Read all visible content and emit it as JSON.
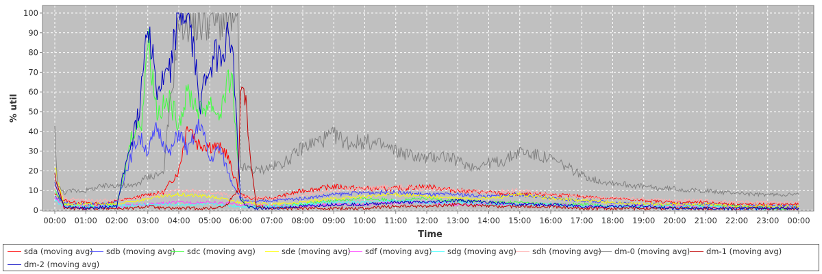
{
  "chart_data": {
    "type": "line",
    "title": "",
    "xlabel": "Time",
    "ylabel": "% util",
    "xlim": [
      "00:00",
      "24:00"
    ],
    "ylim": [
      0,
      100
    ],
    "x_ticks": [
      "00:00",
      "01:00",
      "02:00",
      "03:00",
      "04:00",
      "05:00",
      "06:00",
      "07:00",
      "08:00",
      "09:00",
      "10:00",
      "11:00",
      "12:00",
      "13:00",
      "14:00",
      "15:00",
      "16:00",
      "17:00",
      "18:00",
      "19:00",
      "20:00",
      "21:00",
      "22:00",
      "23:00",
      "00:00"
    ],
    "y_ticks": [
      0,
      10,
      20,
      30,
      40,
      50,
      60,
      70,
      80,
      90,
      100
    ],
    "grid": true,
    "legend_position": "bottom",
    "background": "#c0c0c0",
    "series": [
      {
        "name": "sda (moving avg)",
        "color": "#ff0000",
        "hours": [
          0,
          0.3,
          0.6,
          1,
          1.5,
          2,
          2.5,
          3,
          3.5,
          4,
          4.3,
          4.6,
          5,
          5.5,
          6,
          6.3,
          7,
          8,
          9,
          10,
          11,
          12,
          13,
          14,
          15,
          16,
          17,
          18,
          19,
          20,
          21,
          22,
          23,
          24
        ],
        "values": [
          8,
          5,
          4,
          4,
          3,
          5,
          6,
          8,
          9,
          20,
          45,
          34,
          33,
          30,
          8,
          6,
          6,
          10,
          12,
          11,
          11,
          12,
          10,
          9,
          8,
          8,
          7,
          6,
          5,
          4,
          4,
          3,
          3,
          3
        ]
      },
      {
        "name": "sdb (moving avg)",
        "color": "#4040ff",
        "hours": [
          0,
          0.3,
          0.6,
          1,
          1.5,
          2,
          2.3,
          2.7,
          3,
          3.3,
          3.7,
          4,
          4.3,
          4.7,
          5,
          5.3,
          5.7,
          6,
          6.3,
          7,
          8,
          9,
          10,
          11,
          12,
          13,
          14,
          15,
          16,
          17,
          18,
          19,
          20,
          21,
          22,
          23,
          24
        ],
        "values": [
          7,
          4,
          3,
          3,
          3,
          4,
          20,
          38,
          30,
          42,
          28,
          40,
          30,
          45,
          25,
          32,
          15,
          6,
          4,
          5,
          6,
          8,
          9,
          9,
          8,
          8,
          7,
          8,
          6,
          5,
          4,
          3,
          3,
          3,
          2,
          2,
          2
        ]
      },
      {
        "name": "sdc (moving avg)",
        "color": "#40ff40",
        "hours": [
          0,
          0.3,
          0.6,
          1,
          1.5,
          2,
          2.2,
          2.5,
          2.8,
          3,
          3.3,
          3.7,
          4,
          4.3,
          4.7,
          5,
          5.3,
          5.7,
          6,
          6.3,
          7,
          8,
          9,
          10,
          11,
          12,
          13,
          14,
          15,
          16,
          17,
          18,
          19,
          20,
          21,
          22,
          23,
          24
        ],
        "values": [
          10,
          3,
          2,
          2,
          2,
          3,
          15,
          40,
          45,
          88,
          50,
          55,
          45,
          60,
          50,
          55,
          48,
          70,
          5,
          2,
          2,
          3,
          5,
          6,
          5,
          6,
          5,
          4,
          4,
          3,
          3,
          2,
          2,
          2,
          2,
          2,
          1,
          1
        ]
      },
      {
        "name": "sde (moving avg)",
        "color": "#ffff00",
        "hours": [
          0,
          0.3,
          1,
          2,
          3,
          4,
          5,
          6,
          7,
          8,
          9,
          10,
          11,
          12,
          13,
          14,
          15,
          16,
          17,
          18,
          19,
          20,
          21,
          22,
          23,
          24
        ],
        "values": [
          22,
          3,
          3,
          3,
          6,
          8,
          7,
          4,
          3,
          4,
          6,
          7,
          8,
          7,
          6,
          6,
          8,
          6,
          5,
          4,
          3,
          3,
          3,
          2,
          2,
          2
        ]
      },
      {
        "name": "sdf (moving avg)",
        "color": "#ff40ff",
        "hours": [
          0,
          0.3,
          1,
          2,
          3,
          4,
          5,
          6,
          7,
          8,
          9,
          10,
          11,
          12,
          13,
          14,
          15,
          16,
          17,
          18,
          19,
          20,
          21,
          22,
          23,
          24
        ],
        "values": [
          6,
          2,
          2,
          2,
          3,
          4,
          4,
          3,
          2,
          2,
          3,
          3,
          4,
          4,
          3,
          3,
          3,
          3,
          2,
          2,
          2,
          2,
          2,
          1,
          1,
          1
        ]
      },
      {
        "name": "sdg (moving avg)",
        "color": "#40ffff",
        "hours": [
          0,
          0.3,
          1,
          2,
          3,
          4,
          5,
          6,
          7,
          8,
          9,
          10,
          11,
          12,
          13,
          14,
          15,
          16,
          17,
          18,
          19,
          20,
          21,
          22,
          23,
          24
        ],
        "values": [
          5,
          2,
          2,
          2,
          3,
          3,
          3,
          2,
          2,
          3,
          4,
          4,
          5,
          4,
          4,
          3,
          3,
          3,
          2,
          2,
          2,
          2,
          2,
          1,
          1,
          1
        ]
      },
      {
        "name": "sdh (moving avg)",
        "color": "#ffafaf",
        "hours": [
          0,
          0.3,
          1,
          2,
          3,
          4,
          5,
          6,
          7,
          8,
          9,
          10,
          11,
          12,
          13,
          14,
          15,
          16,
          17,
          18,
          19,
          20,
          21,
          22,
          23,
          24
        ],
        "values": [
          12,
          6,
          5,
          5,
          7,
          10,
          9,
          7,
          6,
          8,
          10,
          11,
          12,
          11,
          10,
          9,
          10,
          8,
          7,
          6,
          6,
          5,
          5,
          4,
          4,
          4
        ]
      },
      {
        "name": "dm-0 (moving avg)",
        "color": "#808080",
        "hours": [
          0,
          0.1,
          0.3,
          0.6,
          1,
          1.5,
          2,
          2.5,
          3,
          3.5,
          4,
          4.3,
          4.6,
          5,
          5.5,
          5.9,
          6,
          6.5,
          7,
          7.5,
          8,
          8.5,
          9,
          9.5,
          10,
          10.5,
          11,
          11.5,
          12,
          12.5,
          13,
          13.5,
          14,
          14.5,
          15,
          15.5,
          16,
          16.5,
          17,
          17.5,
          18,
          18.5,
          19,
          19.5,
          20,
          20.5,
          21,
          21.5,
          22,
          22.5,
          23,
          23.5,
          24
        ],
        "values": [
          40,
          12,
          9,
          10,
          10,
          12,
          13,
          12,
          17,
          19,
          95,
          96,
          94,
          97,
          96,
          95,
          22,
          20,
          22,
          25,
          32,
          35,
          38,
          34,
          35,
          33,
          30,
          28,
          26,
          28,
          25,
          22,
          24,
          25,
          30,
          28,
          26,
          22,
          18,
          15,
          14,
          13,
          12,
          11,
          11,
          10,
          10,
          9,
          9,
          8,
          8,
          8,
          8
        ]
      },
      {
        "name": "dm-1 (moving avg)",
        "color": "#c00000",
        "hours": [
          0,
          0.3,
          1,
          2,
          2.5,
          3,
          3.5,
          4,
          4.5,
          5,
          5.5,
          5.9,
          6,
          6.1,
          6.3,
          6.5,
          7,
          8,
          9,
          10,
          11,
          12,
          13,
          14,
          15,
          16,
          17,
          18,
          19,
          20,
          21,
          22,
          23,
          24
        ],
        "values": [
          18,
          1,
          1,
          1,
          1,
          2,
          1,
          1,
          1,
          1,
          2,
          10,
          60,
          65,
          30,
          2,
          1,
          1,
          1,
          1,
          2,
          2,
          3,
          2,
          2,
          2,
          1,
          1,
          1,
          1,
          1,
          1,
          1,
          1
        ]
      },
      {
        "name": "dm-2 (moving avg)",
        "color": "#0000c0",
        "hours": [
          0,
          0.3,
          1,
          2,
          2.3,
          2.7,
          3,
          3.3,
          3.7,
          4,
          4.3,
          4.7,
          5,
          5.3,
          5.7,
          6,
          6.2,
          6.5,
          7,
          8,
          9,
          10,
          11,
          12,
          13,
          14,
          15,
          16,
          17,
          18,
          19,
          20,
          21,
          22,
          23,
          24
        ],
        "values": [
          14,
          2,
          1,
          2,
          25,
          48,
          100,
          60,
          70,
          100,
          99,
          55,
          75,
          80,
          90,
          5,
          2,
          1,
          1,
          2,
          3,
          3,
          4,
          4,
          5,
          4,
          3,
          3,
          2,
          2,
          2,
          1,
          1,
          1,
          1,
          1
        ]
      }
    ]
  }
}
